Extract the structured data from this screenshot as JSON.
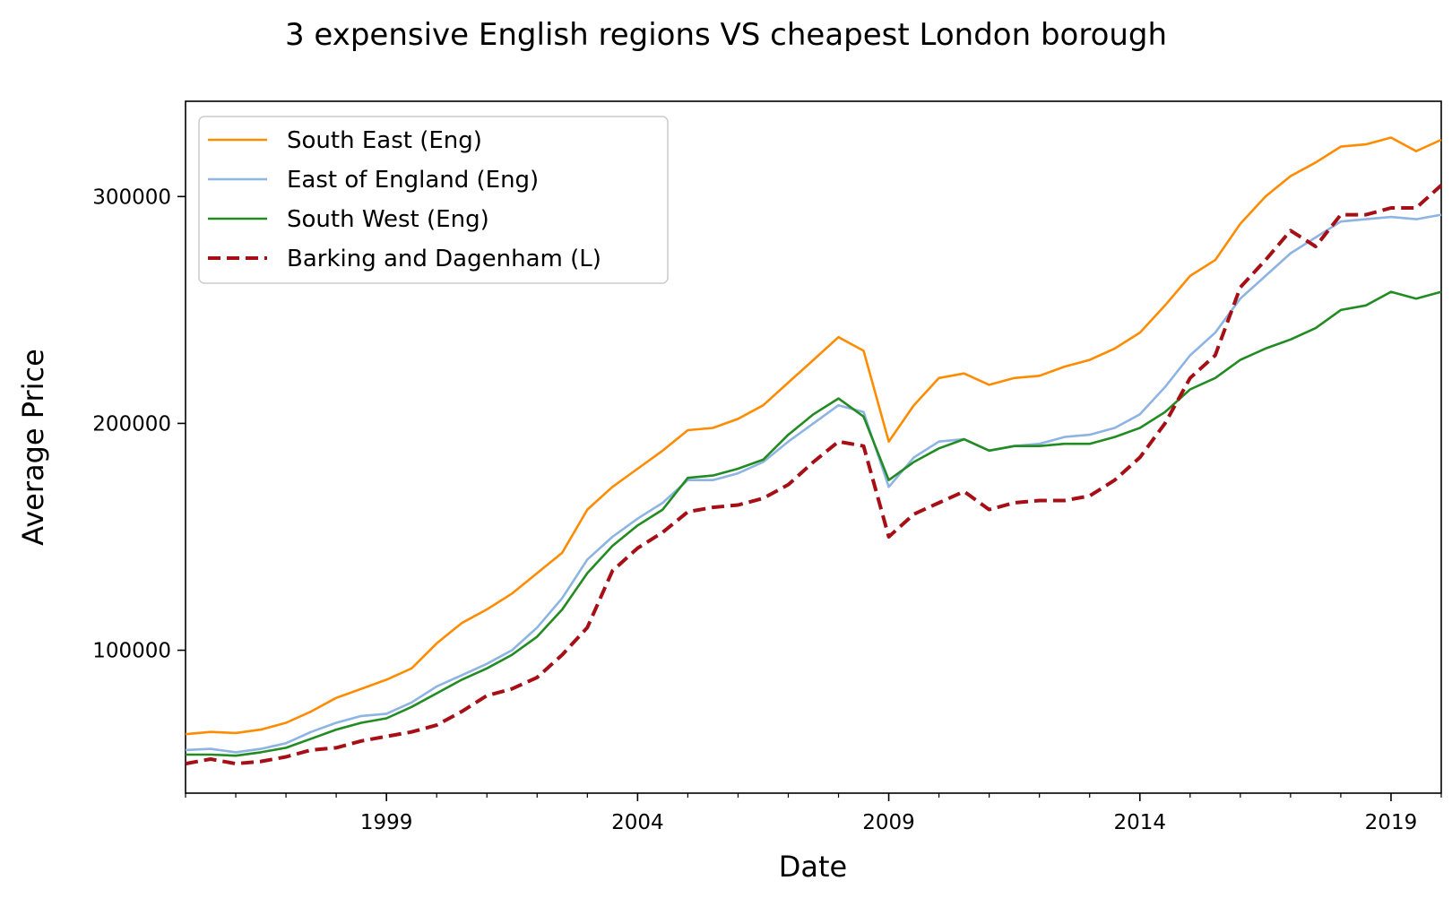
{
  "chart_data": {
    "type": "line",
    "title": "3 expensive English regions VS cheapest London borough",
    "xlabel": "Date",
    "ylabel": "Average Price",
    "xlim": [
      1995.0,
      2020.0
    ],
    "ylim": [
      37000,
      342000
    ],
    "x_ticks": [
      1999,
      2004,
      2009,
      2014,
      2019
    ],
    "x_tick_labels": [
      "1999",
      "2004",
      "2009",
      "2014",
      "2019"
    ],
    "y_ticks": [
      100000,
      200000,
      300000
    ],
    "y_tick_labels": [
      "100000",
      "200000",
      "300000"
    ],
    "grid": false,
    "legend_position": "top-left",
    "series": [
      {
        "name": "South East (Eng)",
        "color": "#ff8c00",
        "dash": "solid",
        "x": [
          1995.0,
          1995.5,
          1996.0,
          1996.5,
          1997.0,
          1997.5,
          1998.0,
          1998.5,
          1999.0,
          1999.5,
          2000.0,
          2000.5,
          2001.0,
          2001.5,
          2002.0,
          2002.5,
          2003.0,
          2003.5,
          2004.0,
          2004.5,
          2005.0,
          2005.5,
          2006.0,
          2006.5,
          2007.0,
          2007.5,
          2008.0,
          2008.5,
          2009.0,
          2009.5,
          2010.0,
          2010.5,
          2011.0,
          2011.5,
          2012.0,
          2012.5,
          2013.0,
          2013.5,
          2014.0,
          2014.5,
          2015.0,
          2015.5,
          2016.0,
          2016.5,
          2017.0,
          2017.5,
          2018.0,
          2018.5,
          2019.0,
          2019.5,
          2020.0
        ],
        "values": [
          63000,
          64000,
          63500,
          65000,
          68000,
          73000,
          79000,
          83000,
          87000,
          92000,
          103000,
          112000,
          118000,
          125000,
          134000,
          143000,
          162000,
          172000,
          180000,
          188000,
          197000,
          198000,
          202000,
          208000,
          218000,
          228000,
          238000,
          232000,
          192000,
          208000,
          220000,
          222000,
          217000,
          220000,
          221000,
          225000,
          228000,
          233000,
          240000,
          252000,
          265000,
          272000,
          288000,
          300000,
          309000,
          315000,
          322000,
          323000,
          326000,
          320000,
          325000
        ]
      },
      {
        "name": "East of England (Eng)",
        "color": "#8db4e2",
        "dash": "solid",
        "x": [
          1995.0,
          1995.5,
          1996.0,
          1996.5,
          1997.0,
          1997.5,
          1998.0,
          1998.5,
          1999.0,
          1999.5,
          2000.0,
          2000.5,
          2001.0,
          2001.5,
          2002.0,
          2002.5,
          2003.0,
          2003.5,
          2004.0,
          2004.5,
          2005.0,
          2005.5,
          2006.0,
          2006.5,
          2007.0,
          2007.5,
          2008.0,
          2008.5,
          2009.0,
          2009.5,
          2010.0,
          2010.5,
          2011.0,
          2011.5,
          2012.0,
          2012.5,
          2013.0,
          2013.5,
          2014.0,
          2014.5,
          2015.0,
          2015.5,
          2016.0,
          2016.5,
          2017.0,
          2017.5,
          2018.0,
          2018.5,
          2019.0,
          2019.5,
          2020.0
        ],
        "values": [
          56000,
          56500,
          55000,
          56500,
          59000,
          64000,
          68000,
          71000,
          72000,
          77000,
          84000,
          89000,
          94000,
          100000,
          110000,
          123000,
          140000,
          150000,
          158000,
          165000,
          175000,
          175000,
          178000,
          183000,
          192000,
          200000,
          208000,
          205000,
          172000,
          185000,
          192000,
          193000,
          188000,
          190000,
          191000,
          194000,
          195000,
          198000,
          204000,
          216000,
          230000,
          240000,
          255000,
          265000,
          275000,
          282000,
          289000,
          290000,
          291000,
          290000,
          292000
        ]
      },
      {
        "name": "South West (Eng)",
        "color": "#228b22",
        "dash": "solid",
        "x": [
          1995.0,
          1995.5,
          1996.0,
          1996.5,
          1997.0,
          1997.5,
          1998.0,
          1998.5,
          1999.0,
          1999.5,
          2000.0,
          2000.5,
          2001.0,
          2001.5,
          2002.0,
          2002.5,
          2003.0,
          2003.5,
          2004.0,
          2004.5,
          2005.0,
          2005.5,
          2006.0,
          2006.5,
          2007.0,
          2007.5,
          2008.0,
          2008.5,
          2009.0,
          2009.5,
          2010.0,
          2010.5,
          2011.0,
          2011.5,
          2012.0,
          2012.5,
          2013.0,
          2013.5,
          2014.0,
          2014.5,
          2015.0,
          2015.5,
          2016.0,
          2016.5,
          2017.0,
          2017.5,
          2018.0,
          2018.5,
          2019.0,
          2019.5,
          2020.0
        ],
        "values": [
          54000,
          54000,
          53500,
          55000,
          57000,
          61000,
          65000,
          68000,
          70000,
          75000,
          81000,
          87000,
          92000,
          98000,
          106000,
          118000,
          134000,
          146000,
          155000,
          162000,
          176000,
          177000,
          180000,
          184000,
          195000,
          204000,
          211000,
          203000,
          175000,
          183000,
          189000,
          193000,
          188000,
          190000,
          190000,
          191000,
          191000,
          194000,
          198000,
          205000,
          215000,
          220000,
          228000,
          233000,
          237000,
          242000,
          250000,
          252000,
          258000,
          255000,
          258000
        ]
      },
      {
        "name": "Barking and Dagenham (L)",
        "color": "#a50f15",
        "dash": "dashed",
        "x": [
          1995.0,
          1995.5,
          1996.0,
          1996.5,
          1997.0,
          1997.5,
          1998.0,
          1998.5,
          1999.0,
          1999.5,
          2000.0,
          2000.5,
          2001.0,
          2001.5,
          2002.0,
          2002.5,
          2003.0,
          2003.5,
          2004.0,
          2004.5,
          2005.0,
          2005.5,
          2006.0,
          2006.5,
          2007.0,
          2007.5,
          2008.0,
          2008.5,
          2009.0,
          2009.5,
          2010.0,
          2010.5,
          2011.0,
          2011.5,
          2012.0,
          2012.5,
          2013.0,
          2013.5,
          2014.0,
          2014.5,
          2015.0,
          2015.5,
          2016.0,
          2016.5,
          2017.0,
          2017.5,
          2018.0,
          2018.5,
          2019.0,
          2019.5,
          2020.0
        ],
        "values": [
          50000,
          52000,
          50000,
          51000,
          53000,
          56000,
          57000,
          60000,
          62000,
          64000,
          67000,
          73000,
          80000,
          83000,
          88000,
          98000,
          110000,
          135000,
          145000,
          152000,
          161000,
          163000,
          164000,
          167000,
          173000,
          183000,
          192000,
          190000,
          150000,
          160000,
          165000,
          170000,
          162000,
          165000,
          166000,
          166000,
          168000,
          175000,
          185000,
          200000,
          220000,
          230000,
          260000,
          272000,
          285000,
          278000,
          292000,
          292000,
          295000,
          295000,
          305000
        ]
      }
    ]
  }
}
